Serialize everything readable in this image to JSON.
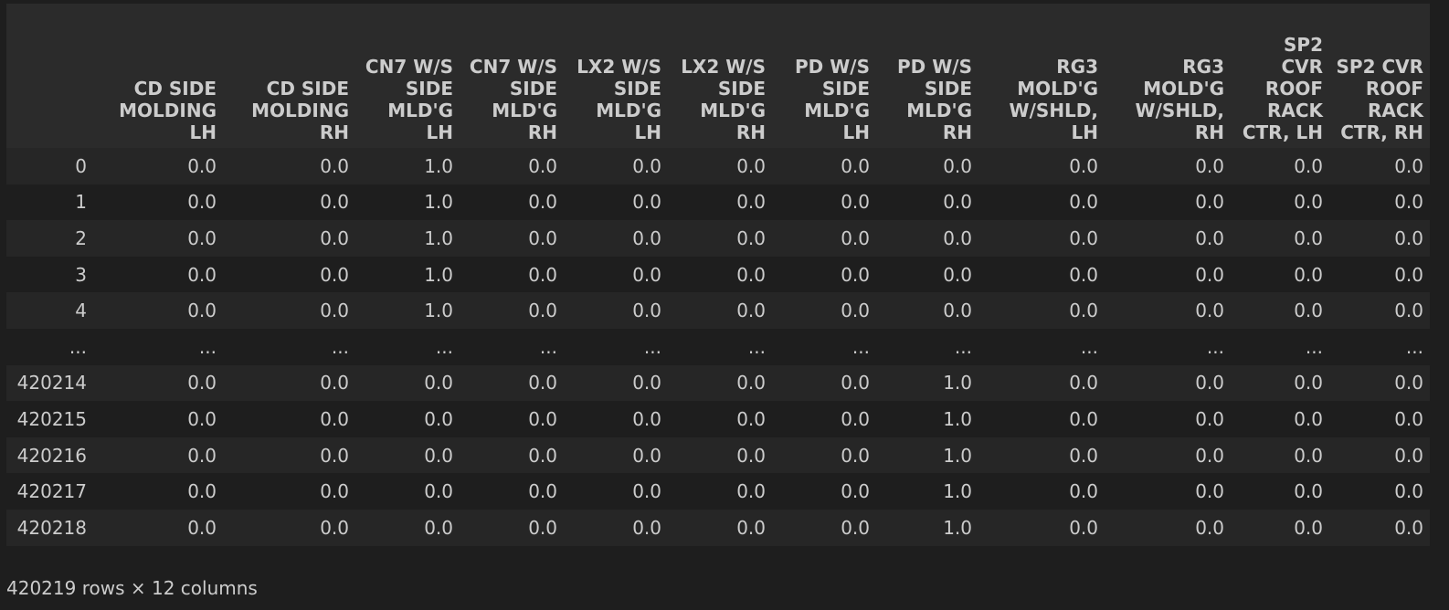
{
  "table": {
    "index_header": "",
    "columns": [
      "CD SIDE MOLDING LH",
      "CD SIDE MOLDING RH",
      "CN7 W/S SIDE MLD'G LH",
      "CN7 W/S SIDE MLD'G RH",
      "LX2 W/S SIDE MLD'G LH",
      "LX2 W/S SIDE MLD'G RH",
      "PD W/S SIDE MLD'G LH",
      "PD W/S SIDE MLD'G RH",
      "RG3 MOLD'G W/SHLD, LH",
      "RG3 MOLD'G W/SHLD, RH",
      "SP2 CVR ROOF RACK CTR, LH",
      "SP2 CVR ROOF RACK CTR, RH"
    ],
    "rows": [
      {
        "index": "0",
        "values": [
          "0.0",
          "0.0",
          "1.0",
          "0.0",
          "0.0",
          "0.0",
          "0.0",
          "0.0",
          "0.0",
          "0.0",
          "0.0",
          "0.0"
        ]
      },
      {
        "index": "1",
        "values": [
          "0.0",
          "0.0",
          "1.0",
          "0.0",
          "0.0",
          "0.0",
          "0.0",
          "0.0",
          "0.0",
          "0.0",
          "0.0",
          "0.0"
        ]
      },
      {
        "index": "2",
        "values": [
          "0.0",
          "0.0",
          "1.0",
          "0.0",
          "0.0",
          "0.0",
          "0.0",
          "0.0",
          "0.0",
          "0.0",
          "0.0",
          "0.0"
        ]
      },
      {
        "index": "3",
        "values": [
          "0.0",
          "0.0",
          "1.0",
          "0.0",
          "0.0",
          "0.0",
          "0.0",
          "0.0",
          "0.0",
          "0.0",
          "0.0",
          "0.0"
        ]
      },
      {
        "index": "4",
        "values": [
          "0.0",
          "0.0",
          "1.0",
          "0.0",
          "0.0",
          "0.0",
          "0.0",
          "0.0",
          "0.0",
          "0.0",
          "0.0",
          "0.0"
        ]
      },
      {
        "index": "...",
        "values": [
          "...",
          "...",
          "...",
          "...",
          "...",
          "...",
          "...",
          "...",
          "...",
          "...",
          "...",
          "..."
        ]
      },
      {
        "index": "420214",
        "values": [
          "0.0",
          "0.0",
          "0.0",
          "0.0",
          "0.0",
          "0.0",
          "0.0",
          "1.0",
          "0.0",
          "0.0",
          "0.0",
          "0.0"
        ]
      },
      {
        "index": "420215",
        "values": [
          "0.0",
          "0.0",
          "0.0",
          "0.0",
          "0.0",
          "0.0",
          "0.0",
          "1.0",
          "0.0",
          "0.0",
          "0.0",
          "0.0"
        ]
      },
      {
        "index": "420216",
        "values": [
          "0.0",
          "0.0",
          "0.0",
          "0.0",
          "0.0",
          "0.0",
          "0.0",
          "1.0",
          "0.0",
          "0.0",
          "0.0",
          "0.0"
        ]
      },
      {
        "index": "420217",
        "values": [
          "0.0",
          "0.0",
          "0.0",
          "0.0",
          "0.0",
          "0.0",
          "0.0",
          "1.0",
          "0.0",
          "0.0",
          "0.0",
          "0.0"
        ]
      },
      {
        "index": "420218",
        "values": [
          "0.0",
          "0.0",
          "0.0",
          "0.0",
          "0.0",
          "0.0",
          "0.0",
          "1.0",
          "0.0",
          "0.0",
          "0.0",
          "0.0"
        ]
      }
    ]
  },
  "footer": {
    "shape_text": "420219 rows × 12 columns"
  },
  "colors": {
    "background": "#1e1e1e",
    "header_background": "#2b2b2b",
    "row_stripe": "#262626",
    "text": "#cccccc"
  }
}
